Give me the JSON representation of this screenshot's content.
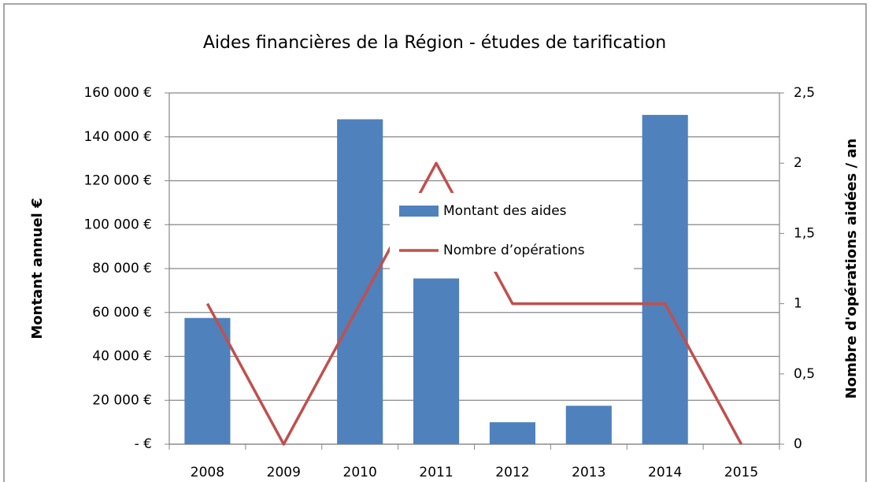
{
  "chart_data": {
    "type": "bar",
    "title": "Aides financières de la Région - études de tarification",
    "categories": [
      "2008",
      "2009",
      "2010",
      "2011",
      "2012",
      "2013",
      "2014",
      "2015"
    ],
    "series": [
      {
        "name": "Montant des aides",
        "type": "bar",
        "color": "#4f81bd",
        "values": [
          57500,
          0,
          148000,
          75500,
          10000,
          17500,
          150000,
          0
        ]
      },
      {
        "name": "Nombre d’opérations",
        "type": "line",
        "axis": "y2",
        "color": "#c0504d",
        "values": [
          1,
          0,
          1,
          2,
          1,
          1,
          1,
          0
        ]
      }
    ],
    "y_label": "Montant annuel €",
    "y2_label": "Nombre d'opérations aidées / an",
    "ylim": [
      0,
      160000
    ],
    "yticks": [
      {
        "value": 0,
        "label": "-   €"
      },
      {
        "value": 20000,
        "label": "20 000 €"
      },
      {
        "value": 40000,
        "label": "40 000 €"
      },
      {
        "value": 60000,
        "label": "60 000 €"
      },
      {
        "value": 80000,
        "label": "80 000 €"
      },
      {
        "value": 100000,
        "label": "100 000 €"
      },
      {
        "value": 120000,
        "label": "120 000 €"
      },
      {
        "value": 140000,
        "label": "140 000 €"
      },
      {
        "value": 160000,
        "label": "160 000 €"
      }
    ],
    "y2lim": [
      0,
      2.5
    ],
    "y2ticks": [
      0,
      {
        "value": 0.5,
        "label": "0,5"
      },
      1,
      {
        "value": 1.5,
        "label": "1,5"
      },
      2,
      {
        "value": 2.5,
        "label": "2,5"
      }
    ],
    "grid": true,
    "legend": "center"
  }
}
